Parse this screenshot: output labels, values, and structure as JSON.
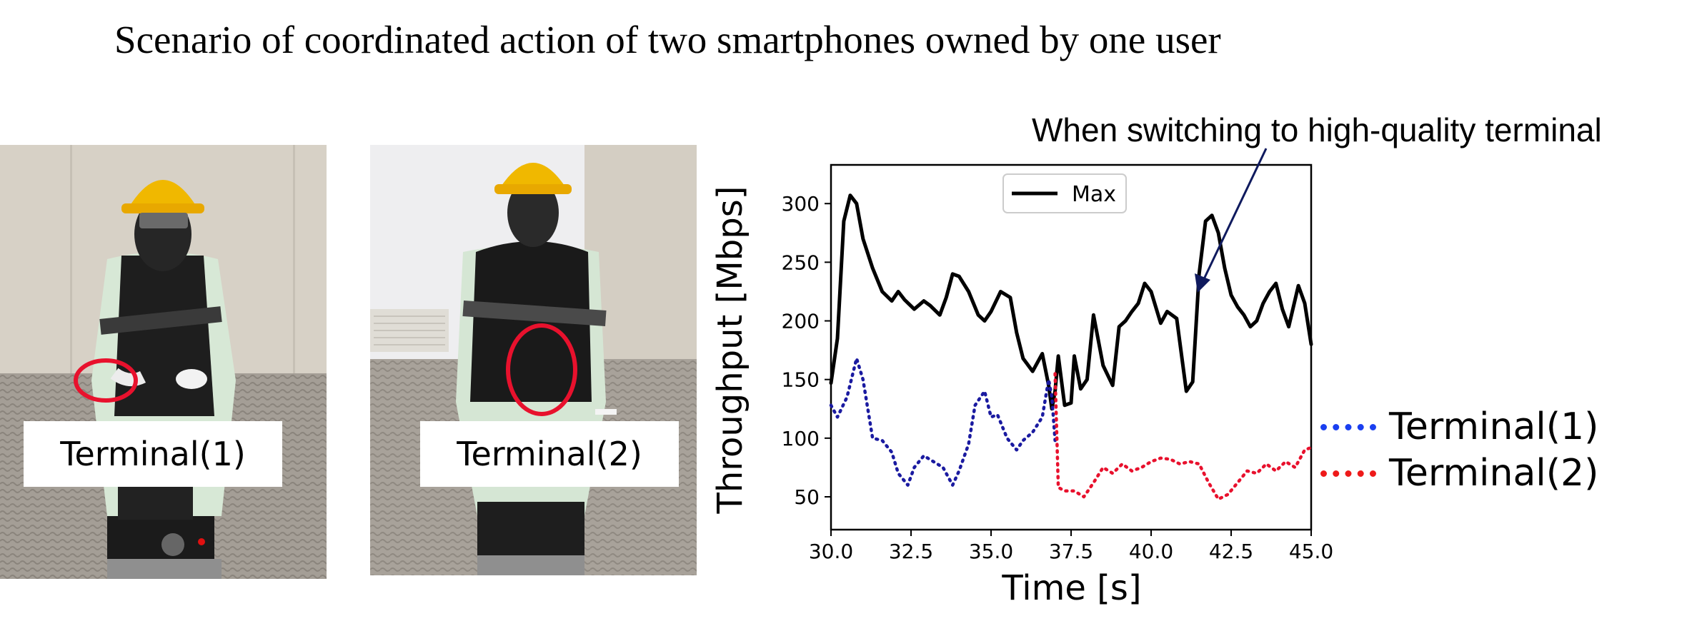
{
  "title": "Scenario of coordinated action of two smartphones owned by one user",
  "terminal_labels": [
    "Terminal(1)",
    "Terminal(2)"
  ],
  "annotation": "When switching to high-quality terminal",
  "right_legend": [
    {
      "label": "Terminal(1)",
      "color": "#1a3ff0"
    },
    {
      "label": "Terminal(2)",
      "color": "#ee1a1a"
    }
  ],
  "colors": {
    "max": "#000000",
    "terminal1": "#1a1aa0",
    "terminal2": "#e8112d",
    "arrow": "#0f1a5e",
    "circle": "#e8112d"
  },
  "icons": [
    "mannequin-terminal1-photo",
    "mannequin-terminal2-photo"
  ],
  "chart_data": {
    "type": "line",
    "xlabel": "Time [s]",
    "ylabel": "Throughput [Mbps]",
    "xlim": [
      30.0,
      45.0
    ],
    "ylim": [
      22,
      333
    ],
    "xticks": [
      "30.0",
      "32.5",
      "35.0",
      "37.5",
      "40.0",
      "42.5",
      "45.0"
    ],
    "yticks": [
      "50",
      "100",
      "150",
      "200",
      "250",
      "300"
    ],
    "legend": {
      "entries": [
        "Max"
      ],
      "position": "top-center"
    },
    "grid": false,
    "series": [
      {
        "name": "Max",
        "style": "solid",
        "x": [
          30.0,
          30.2,
          30.4,
          30.6,
          30.8,
          31.0,
          31.3,
          31.6,
          31.9,
          32.1,
          32.3,
          32.6,
          32.9,
          33.1,
          33.4,
          33.6,
          33.8,
          34.0,
          34.3,
          34.6,
          34.8,
          35.0,
          35.3,
          35.6,
          35.8,
          36.0,
          36.3,
          36.6,
          36.8,
          36.9,
          37.0,
          37.1,
          37.3,
          37.5,
          37.6,
          37.8,
          38.0,
          38.2,
          38.5,
          38.8,
          39.0,
          39.2,
          39.4,
          39.6,
          39.8,
          40.0,
          40.3,
          40.5,
          40.8,
          41.1,
          41.3,
          41.5,
          41.7,
          41.9,
          42.1,
          42.3,
          42.5,
          42.7,
          42.9,
          43.1,
          43.3,
          43.5,
          43.7,
          43.9,
          44.1,
          44.3,
          44.6,
          44.8,
          45.0
        ],
        "y": [
          147,
          185,
          285,
          307,
          300,
          270,
          245,
          225,
          217,
          225,
          218,
          210,
          217,
          213,
          205,
          220,
          240,
          238,
          225,
          205,
          200,
          208,
          225,
          220,
          190,
          168,
          157,
          172,
          145,
          125,
          140,
          170,
          128,
          130,
          170,
          142,
          150,
          205,
          162,
          145,
          195,
          200,
          208,
          215,
          232,
          225,
          198,
          208,
          202,
          140,
          148,
          240,
          285,
          290,
          275,
          245,
          222,
          212,
          205,
          195,
          200,
          215,
          225,
          232,
          210,
          195,
          230,
          215,
          180
        ]
      },
      {
        "name": "Terminal(1)",
        "style": "dotted",
        "x": [
          30.0,
          30.2,
          30.5,
          30.8,
          31.0,
          31.3,
          31.6,
          31.9,
          32.1,
          32.4,
          32.6,
          32.9,
          33.2,
          33.5,
          33.8,
          34.0,
          34.3,
          34.5,
          34.8,
          35.0,
          35.2,
          35.5,
          35.8,
          36.0,
          36.3,
          36.6,
          36.8,
          36.9,
          37.0
        ],
        "y": [
          128,
          118,
          135,
          168,
          150,
          100,
          98,
          88,
          70,
          60,
          75,
          85,
          80,
          75,
          60,
          72,
          95,
          128,
          140,
          118,
          120,
          100,
          90,
          98,
          105,
          118,
          150,
          135,
          98
        ]
      },
      {
        "name": "Terminal(2)",
        "style": "dotted",
        "x": [
          37.0,
          37.1,
          37.3,
          37.6,
          37.9,
          38.2,
          38.5,
          38.8,
          39.1,
          39.4,
          39.7,
          40.0,
          40.3,
          40.6,
          40.9,
          41.2,
          41.5,
          41.8,
          42.1,
          42.4,
          42.7,
          43.0,
          43.3,
          43.6,
          43.9,
          44.2,
          44.5,
          44.8,
          45.0
        ],
        "y": [
          155,
          58,
          55,
          55,
          50,
          62,
          75,
          70,
          78,
          72,
          75,
          80,
          83,
          82,
          78,
          80,
          78,
          62,
          48,
          52,
          62,
          72,
          70,
          78,
          72,
          80,
          75,
          90,
          92
        ]
      }
    ]
  }
}
